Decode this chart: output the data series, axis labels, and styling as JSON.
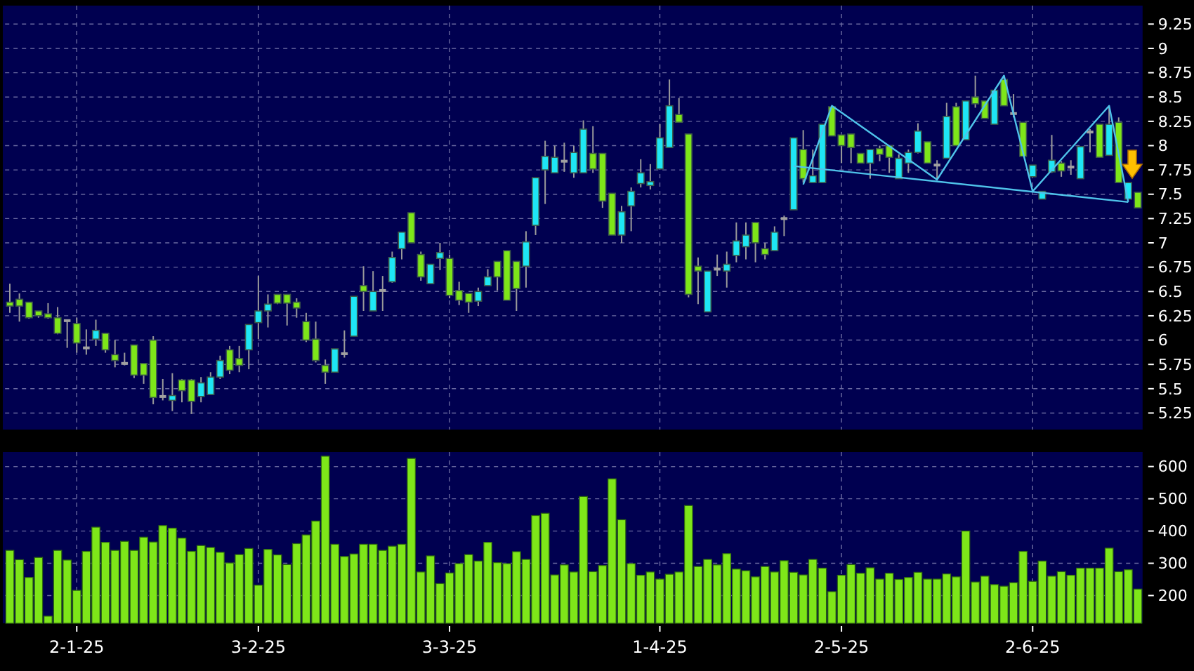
{
  "chart_data": [
    {
      "type": "candlestick",
      "categories": [
        null,
        null,
        null,
        null,
        null,
        null,
        null,
        null,
        null,
        null,
        null,
        null,
        null,
        null,
        null,
        null,
        null,
        null,
        null,
        null,
        null,
        null,
        null,
        null,
        null,
        null,
        null,
        null,
        null,
        null,
        null,
        null,
        null,
        null,
        null,
        null,
        null,
        null,
        null,
        null,
        null,
        null,
        null,
        null,
        null,
        null,
        null,
        null,
        null,
        null,
        null,
        null,
        null,
        null,
        null,
        null,
        null,
        null,
        null,
        null,
        null,
        null,
        null,
        null,
        null,
        null,
        null,
        null,
        null,
        null,
        null,
        null,
        null,
        null,
        null,
        null,
        null,
        null,
        null,
        null,
        null,
        null,
        null,
        null,
        null,
        null,
        null,
        null,
        null,
        null,
        null,
        null,
        null,
        null,
        null,
        null,
        null,
        null,
        null,
        null,
        null,
        null,
        null,
        null,
        null,
        null,
        null,
        null,
        null,
        null,
        null,
        null,
        null,
        null,
        null,
        null,
        null,
        null,
        null
      ],
      "ohlc": [
        [
          6.39,
          6.58,
          6.28,
          6.35
        ],
        [
          6.42,
          6.48,
          6.19,
          6.35
        ],
        [
          6.39,
          6.39,
          6.22,
          6.23
        ],
        [
          6.3,
          6.3,
          6.23,
          6.25
        ],
        [
          6.27,
          6.38,
          6.22,
          6.23
        ],
        [
          6.23,
          6.34,
          6.06,
          6.07
        ],
        [
          6.2,
          6.2,
          5.92,
          6.2
        ],
        [
          6.17,
          6.23,
          5.87,
          5.97
        ],
        [
          5.92,
          6.11,
          5.85,
          5.92
        ],
        [
          6.01,
          6.21,
          5.94,
          6.1
        ],
        [
          6.07,
          6.07,
          5.87,
          5.9
        ],
        [
          5.85,
          6.0,
          5.72,
          5.79
        ],
        [
          5.76,
          5.87,
          5.74,
          5.76
        ],
        [
          5.95,
          5.95,
          5.61,
          5.64
        ],
        [
          5.76,
          5.76,
          5.55,
          5.64
        ],
        [
          6.0,
          6.04,
          5.34,
          5.41
        ],
        [
          5.42,
          5.6,
          5.38,
          5.42
        ],
        [
          5.38,
          5.66,
          5.27,
          5.43
        ],
        [
          5.59,
          5.6,
          5.36,
          5.48
        ],
        [
          5.59,
          5.6,
          5.24,
          5.37
        ],
        [
          5.42,
          5.62,
          5.36,
          5.56
        ],
        [
          5.44,
          5.67,
          5.44,
          5.62
        ],
        [
          5.62,
          5.84,
          5.6,
          5.79
        ],
        [
          5.9,
          5.94,
          5.65,
          5.69
        ],
        [
          5.81,
          5.94,
          5.67,
          5.74
        ],
        [
          5.9,
          6.16,
          5.7,
          6.16
        ],
        [
          6.18,
          6.66,
          6.01,
          6.3
        ],
        [
          6.3,
          6.47,
          6.13,
          6.37
        ],
        [
          6.47,
          6.47,
          6.37,
          6.38
        ],
        [
          6.47,
          6.47,
          6.15,
          6.38
        ],
        [
          6.39,
          6.43,
          6.23,
          6.33
        ],
        [
          6.19,
          6.28,
          5.98,
          6.0
        ],
        [
          6.01,
          6.19,
          5.77,
          5.79
        ],
        [
          5.74,
          5.8,
          5.55,
          5.67
        ],
        [
          5.67,
          5.91,
          5.67,
          5.91
        ],
        [
          5.86,
          6.1,
          5.82,
          5.86
        ],
        [
          6.04,
          6.45,
          6.04,
          6.45
        ],
        [
          6.56,
          6.76,
          6.3,
          6.5
        ],
        [
          6.3,
          6.71,
          6.3,
          6.5
        ],
        [
          6.51,
          6.66,
          6.3,
          6.51
        ],
        [
          6.6,
          6.91,
          6.59,
          6.85
        ],
        [
          6.94,
          7.11,
          6.83,
          7.11
        ],
        [
          7.31,
          7.31,
          7.0,
          7.0
        ],
        [
          6.88,
          6.91,
          6.61,
          6.65
        ],
        [
          6.58,
          6.78,
          6.58,
          6.78
        ],
        [
          6.84,
          7.0,
          6.72,
          6.9
        ],
        [
          6.84,
          6.88,
          6.43,
          6.46
        ],
        [
          6.51,
          6.6,
          6.36,
          6.41
        ],
        [
          6.48,
          6.48,
          6.28,
          6.39
        ],
        [
          6.4,
          6.54,
          6.35,
          6.5
        ],
        [
          6.56,
          6.73,
          6.56,
          6.65
        ],
        [
          6.81,
          6.81,
          6.51,
          6.65
        ],
        [
          6.92,
          6.92,
          6.41,
          6.41
        ],
        [
          6.81,
          6.81,
          6.3,
          6.53
        ],
        [
          6.76,
          7.12,
          6.54,
          7.01
        ],
        [
          7.18,
          7.67,
          7.08,
          7.67
        ],
        [
          7.75,
          8.05,
          7.4,
          7.89
        ],
        [
          7.72,
          8.0,
          7.72,
          7.88
        ],
        [
          7.84,
          8.03,
          7.73,
          7.84
        ],
        [
          7.72,
          8.0,
          7.67,
          7.93
        ],
        [
          7.72,
          8.26,
          7.72,
          8.17
        ],
        [
          7.92,
          8.2,
          7.72,
          7.76
        ],
        [
          7.92,
          7.92,
          7.36,
          7.43
        ],
        [
          7.51,
          7.51,
          7.08,
          7.08
        ],
        [
          7.08,
          7.38,
          7.0,
          7.32
        ],
        [
          7.38,
          7.57,
          7.12,
          7.53
        ],
        [
          7.61,
          7.86,
          7.57,
          7.72
        ],
        [
          7.59,
          7.81,
          7.55,
          7.63
        ],
        [
          7.76,
          8.22,
          7.76,
          8.08
        ],
        [
          7.98,
          8.68,
          7.98,
          8.41
        ],
        [
          8.32,
          8.49,
          8.24,
          8.24
        ],
        [
          8.12,
          8.12,
          6.44,
          6.47
        ],
        [
          6.76,
          6.85,
          6.37,
          6.71
        ],
        [
          6.29,
          6.71,
          6.29,
          6.71
        ],
        [
          6.73,
          6.88,
          6.66,
          6.73
        ],
        [
          6.71,
          6.91,
          6.54,
          6.78
        ],
        [
          6.87,
          7.21,
          6.8,
          7.02
        ],
        [
          6.96,
          7.21,
          6.83,
          7.08
        ],
        [
          7.21,
          7.21,
          6.8,
          7.0
        ],
        [
          6.94,
          7.0,
          6.83,
          6.88
        ],
        [
          6.92,
          7.17,
          6.92,
          7.11
        ],
        [
          7.25,
          7.28,
          7.07,
          7.25
        ],
        [
          7.34,
          8.08,
          7.34,
          8.08
        ],
        [
          7.96,
          8.16,
          7.62,
          7.66
        ],
        [
          7.62,
          7.96,
          7.62,
          7.69
        ],
        [
          7.62,
          8.22,
          7.62,
          8.22
        ],
        [
          8.4,
          8.4,
          8.1,
          8.1
        ],
        [
          8.11,
          8.11,
          7.82,
          8.0
        ],
        [
          8.12,
          8.12,
          7.82,
          7.98
        ],
        [
          7.92,
          7.92,
          7.82,
          7.82
        ],
        [
          7.82,
          7.96,
          7.66,
          7.96
        ],
        [
          7.97,
          8.0,
          7.84,
          7.91
        ],
        [
          8.0,
          8.0,
          7.72,
          7.88
        ],
        [
          7.66,
          7.91,
          7.66,
          7.87
        ],
        [
          7.82,
          7.96,
          7.72,
          7.93
        ],
        [
          7.93,
          8.23,
          7.92,
          8.15
        ],
        [
          8.04,
          8.04,
          7.82,
          7.82
        ],
        [
          7.8,
          7.85,
          7.66,
          7.8
        ],
        [
          7.87,
          8.44,
          7.87,
          8.3
        ],
        [
          8.4,
          8.44,
          8.0,
          8.0
        ],
        [
          8.06,
          8.46,
          8.06,
          8.46
        ],
        [
          8.5,
          8.72,
          8.39,
          8.43
        ],
        [
          8.46,
          8.46,
          8.28,
          8.28
        ],
        [
          8.22,
          8.57,
          8.22,
          8.57
        ],
        [
          8.68,
          8.72,
          8.41,
          8.41
        ],
        [
          8.33,
          8.53,
          8.29,
          8.33
        ],
        [
          8.24,
          8.24,
          7.89,
          7.89
        ],
        [
          7.68,
          7.8,
          7.68,
          7.8
        ],
        [
          7.45,
          7.53,
          7.45,
          7.53
        ],
        [
          7.73,
          8.11,
          7.72,
          7.85
        ],
        [
          7.82,
          7.84,
          7.68,
          7.74
        ],
        [
          7.78,
          7.85,
          7.7,
          7.78
        ],
        [
          7.66,
          7.99,
          7.66,
          7.99
        ],
        [
          8.14,
          8.17,
          7.93,
          8.14
        ],
        [
          8.22,
          8.22,
          7.88,
          7.88
        ],
        [
          7.9,
          8.4,
          7.9,
          8.22
        ],
        [
          8.24,
          8.29,
          7.62,
          7.62
        ],
        [
          7.45,
          7.62,
          7.45,
          7.62
        ],
        [
          7.52,
          7.52,
          7.36,
          7.36
        ]
      ],
      "colors": [
        "#7ee619",
        "#7ee619",
        "#7ee619",
        "#7ee619",
        "#7ee619",
        "#7ee619",
        "#a0a0a0",
        "#7ee619",
        "#a0a0a0",
        "#1ee6f5",
        "#7ee619",
        "#7ee619",
        "#a0a0a0",
        "#7ee619",
        "#7ee619",
        "#7ee619",
        "#a0a0a0",
        "#1ee6f5",
        "#7ee619",
        "#7ee619",
        "#1ee6f5",
        "#1ee6f5",
        "#1ee6f5",
        "#7ee619",
        "#7ee619",
        "#1ee6f5",
        "#1ee6f5",
        "#1ee6f5",
        "#7ee619",
        "#7ee619",
        "#7ee619",
        "#7ee619",
        "#7ee619",
        "#7ee619",
        "#1ee6f5",
        "#a0a0a0",
        "#1ee6f5",
        "#7ee619",
        "#1ee6f5",
        "#a0a0a0",
        "#1ee6f5",
        "#1ee6f5",
        "#7ee619",
        "#7ee619",
        "#1ee6f5",
        "#1ee6f5",
        "#7ee619",
        "#7ee619",
        "#7ee619",
        "#1ee6f5",
        "#1ee6f5",
        "#7ee619",
        "#7ee619",
        "#7ee619",
        "#1ee6f5",
        "#1ee6f5",
        "#1ee6f5",
        "#1ee6f5",
        "#a0a0a0",
        "#1ee6f5",
        "#1ee6f5",
        "#7ee619",
        "#7ee619",
        "#7ee619",
        "#1ee6f5",
        "#1ee6f5",
        "#1ee6f5",
        "#1ee6f5",
        "#1ee6f5",
        "#1ee6f5",
        "#7ee619",
        "#7ee619",
        "#7ee619",
        "#1ee6f5",
        "#a0a0a0",
        "#1ee6f5",
        "#1ee6f5",
        "#1ee6f5",
        "#7ee619",
        "#7ee619",
        "#1ee6f5",
        "#a0a0a0",
        "#1ee6f5",
        "#7ee619",
        "#1ee6f5",
        "#1ee6f5",
        "#7ee619",
        "#7ee619",
        "#7ee619",
        "#7ee619",
        "#1ee6f5",
        "#7ee619",
        "#7ee619",
        "#1ee6f5",
        "#1ee6f5",
        "#1ee6f5",
        "#7ee619",
        "#a0a0a0",
        "#1ee6f5",
        "#7ee619",
        "#1ee6f5",
        "#7ee619",
        "#7ee619",
        "#1ee6f5",
        "#7ee619",
        "#a0a0a0",
        "#7ee619",
        "#1ee6f5",
        "#1ee6f5",
        "#1ee6f5",
        "#7ee619",
        "#a0a0a0",
        "#1ee6f5",
        "#a0a0a0",
        "#7ee619",
        "#1ee6f5",
        "#7ee619",
        "#1ee6f5",
        "#7ee619"
      ],
      "series": [
        {
          "type": "line",
          "color": "#4fc3ea",
          "values": [
            null,
            null,
            null,
            null,
            null,
            null,
            null,
            null,
            null,
            null,
            null,
            null,
            null,
            null,
            null,
            null,
            null,
            null,
            null,
            null,
            null,
            null,
            null,
            null,
            null,
            null,
            null,
            null,
            null,
            null,
            null,
            null,
            null,
            null,
            null,
            null,
            null,
            null,
            null,
            null,
            null,
            null,
            null,
            null,
            null,
            null,
            null,
            null,
            null,
            null,
            null,
            null,
            null,
            null,
            null,
            null,
            null,
            null,
            null,
            null,
            null,
            null,
            null,
            null,
            null,
            null,
            null,
            null,
            null,
            null,
            null,
            null,
            null,
            null,
            null,
            null,
            null,
            null,
            null,
            null,
            null,
            null,
            null,
            7.6,
            null,
            null,
            8.41,
            null,
            null,
            null,
            null,
            null,
            null,
            null,
            null,
            null,
            null,
            7.65,
            null,
            null,
            null,
            null,
            null,
            null,
            8.72,
            null,
            null,
            7.53,
            null,
            null,
            null,
            null,
            null,
            null,
            null,
            8.41,
            null,
            7.42,
            null
          ]
        },
        {
          "type": "line",
          "color": "#4fc3ea",
          "values": [
            null,
            null,
            null,
            null,
            null,
            null,
            null,
            null,
            null,
            null,
            null,
            null,
            null,
            null,
            null,
            null,
            null,
            null,
            null,
            null,
            null,
            null,
            null,
            null,
            null,
            null,
            null,
            null,
            null,
            null,
            null,
            null,
            null,
            null,
            null,
            null,
            null,
            null,
            null,
            null,
            null,
            null,
            null,
            null,
            null,
            null,
            null,
            null,
            null,
            null,
            null,
            null,
            null,
            null,
            null,
            null,
            null,
            null,
            null,
            null,
            null,
            null,
            null,
            null,
            null,
            null,
            null,
            null,
            null,
            null,
            null,
            null,
            null,
            null,
            null,
            null,
            null,
            null,
            null,
            null,
            null,
            null,
            7.79,
            null,
            null,
            null,
            null,
            null,
            null,
            null,
            null,
            null,
            null,
            null,
            null,
            null,
            null,
            null,
            null,
            null,
            null,
            null,
            null,
            null,
            null,
            null,
            null,
            null,
            null,
            null,
            null,
            null,
            null,
            null,
            null,
            null,
            null,
            7.42,
            null
          ]
        }
      ],
      "ylim": [
        5.08,
        9.44
      ],
      "yticks": [
        5.25,
        5.5,
        5.75,
        6,
        6.25,
        6.5,
        6.75,
        7,
        7.25,
        7.5,
        7.75,
        8,
        8.25,
        8.5,
        8.75,
        9,
        9.25
      ],
      "grid": true,
      "tick_labels": "y"
    },
    {
      "type": "bar",
      "categories": [
        null,
        null,
        null,
        null,
        null,
        null,
        null,
        "2-1-25",
        null,
        null,
        null,
        null,
        null,
        null,
        null,
        null,
        null,
        null,
        null,
        null,
        null,
        null,
        null,
        null,
        null,
        null,
        "3-2-25",
        null,
        null,
        null,
        null,
        null,
        null,
        null,
        null,
        null,
        null,
        null,
        null,
        null,
        null,
        null,
        null,
        null,
        null,
        null,
        "3-3-25",
        null,
        null,
        null,
        null,
        null,
        null,
        null,
        null,
        null,
        null,
        null,
        null,
        null,
        null,
        null,
        null,
        null,
        null,
        null,
        null,
        null,
        "1-4-25",
        null,
        null,
        null,
        null,
        null,
        null,
        null,
        null,
        null,
        null,
        null,
        null,
        null,
        null,
        null,
        null,
        null,
        null,
        "2-5-25",
        null,
        null,
        null,
        null,
        null,
        null,
        null,
        null,
        null,
        null,
        null,
        null,
        null,
        null,
        null,
        null,
        null,
        null,
        null,
        "2-6-25",
        null,
        null,
        null,
        null,
        null,
        null,
        null,
        null,
        null,
        null,
        null
      ],
      "values": [
        340,
        311,
        256,
        318,
        136,
        340,
        310,
        216,
        337,
        412,
        365,
        340,
        368,
        340,
        381,
        366,
        417,
        409,
        378,
        337,
        355,
        349,
        334,
        301,
        327,
        346,
        232,
        343,
        326,
        296,
        361,
        388,
        431,
        632,
        359,
        321,
        329,
        359,
        359,
        340,
        353,
        359,
        625,
        273,
        323,
        237,
        270,
        299,
        327,
        307,
        365,
        302,
        299,
        336,
        312,
        448,
        455,
        264,
        295,
        273,
        507,
        274,
        293,
        562,
        435,
        299,
        263,
        273,
        251,
        266,
        273,
        479,
        290,
        312,
        295,
        330,
        282,
        277,
        258,
        290,
        273,
        308,
        272,
        264,
        312,
        285,
        212,
        263,
        296,
        269,
        286,
        251,
        269,
        250,
        256,
        272,
        251,
        251,
        267,
        258,
        400,
        242,
        260,
        234,
        229,
        240,
        337,
        244,
        307,
        260,
        274,
        263,
        285,
        285,
        285,
        347,
        274,
        280,
        220
      ],
      "color": "#7ee619",
      "ylim": [
        114,
        645
      ],
      "yticks": [
        200,
        300,
        400,
        500,
        600
      ],
      "grid": true
    }
  ]
}
